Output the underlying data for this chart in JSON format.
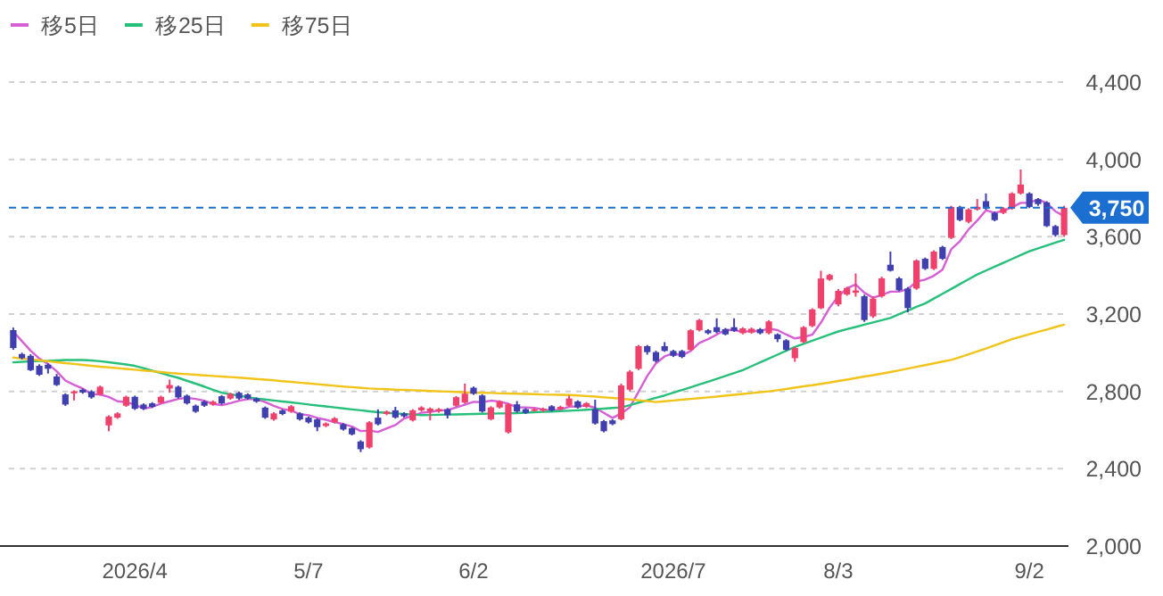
{
  "chart_data": {
    "type": "candlestick",
    "categories": [
      null,
      null,
      null,
      null,
      null,
      null,
      null,
      null,
      null,
      null,
      null,
      null,
      null,
      null,
      "2026/4",
      null,
      null,
      null,
      null,
      null,
      null,
      null,
      null,
      null,
      null,
      null,
      null,
      null,
      null,
      null,
      null,
      null,
      null,
      null,
      "5/7",
      null,
      null,
      null,
      null,
      null,
      null,
      null,
      null,
      null,
      null,
      null,
      null,
      null,
      null,
      null,
      null,
      null,
      null,
      "6/2",
      null,
      null,
      null,
      null,
      null,
      null,
      null,
      null,
      null,
      null,
      null,
      null,
      null,
      null,
      null,
      null,
      null,
      null,
      null,
      null,
      null,
      null,
      "2026/7",
      null,
      null,
      null,
      null,
      null,
      null,
      null,
      null,
      null,
      null,
      null,
      null,
      null,
      null,
      null,
      null,
      null,
      null,
      "8/3",
      null,
      null,
      null,
      null,
      null,
      null,
      null,
      null,
      null,
      null,
      null,
      null,
      null,
      null,
      null,
      null,
      null,
      null,
      null,
      null,
      null,
      "9/2",
      null,
      null,
      null,
      null
    ],
    "series": [
      {
        "colors": [
          "#3f3fb0",
          "#3f3fb0",
          "#3f3fb0",
          "#3f3fb0",
          "#3f3fb0",
          "#3f3fb0",
          "#3f3fb0",
          "#f0416c",
          "#3f3fb0",
          "#3f3fb0",
          "#f0416c",
          "#f0416c",
          "#f0416c",
          "#f0416c",
          "#3f3fb0",
          "#3f3fb0",
          "#3f3fb0",
          "#f0416c",
          "#f0416c",
          "#3f3fb0",
          "#3f3fb0",
          "#3f3fb0",
          "#3f3fb0",
          "#f0416c",
          "#3f3fb0",
          "#f0416c",
          "#3f3fb0",
          "#3f3fb0",
          "#3f3fb0",
          "#3f3fb0",
          "#f0416c",
          "#3f3fb0",
          "#f0416c",
          "#3f3fb0",
          "#3f3fb0",
          "#3f3fb0",
          "#f0416c",
          "#f0416c",
          "#3f3fb0",
          "#3f3fb0",
          "#3f3fb0",
          "#f0416c",
          "#3f3fb0",
          "#f0416c",
          "#3f3fb0",
          "#3f3fb0",
          "#f0416c",
          "#f0416c",
          "#f0416c",
          "#f0416c",
          "#3f3fb0",
          "#f0416c",
          "#f0416c",
          "#3f3fb0",
          "#3f3fb0",
          "#f0416c",
          "#f0416c",
          "#f0416c",
          "#3f3fb0",
          "#3f3fb0",
          "#f0416c",
          "#f0416c",
          "#3f3fb0",
          "#f0416c",
          "#f0416c",
          "#3f3fb0",
          "#f0416c",
          "#3f3fb0",
          "#3f3fb0",
          "#3f3fb0",
          "#f0416c",
          "#f0416c",
          "#f0416c",
          "#3f3fb0",
          "#3f3fb0",
          "#3f3fb0",
          "#3f3fb0",
          "#3f3fb0",
          "#f0416c",
          "#f0416c",
          "#3f3fb0",
          "#3f3fb0",
          "#3f3fb0",
          "#3f3fb0",
          "#f0416c",
          "#f0416c",
          "#3f3fb0",
          "#f0416c",
          "#3f3fb0",
          "#3f3fb0",
          "#f0416c",
          "#f0416c",
          "#f0416c",
          "#f0416c",
          "#f0416c",
          "#f0416c",
          "#f0416c",
          "#f0416c",
          "#3f3fb0",
          "#f0416c",
          "#f0416c",
          "#3f3fb0",
          "#3f3fb0",
          "#3f3fb0",
          "#f0416c",
          "#3f3fb0",
          "#f0416c",
          "#3f3fb0",
          "#f0416c",
          "#3f3fb0",
          "#f0416c",
          "#f0416c",
          "#3f3fb0",
          "#3f3fb0",
          "#f0416c",
          "#f0416c",
          "#f0416c",
          "#3f3fb0",
          "#3f3fb0",
          "#3f3fb0",
          "#3f3fb0",
          "#f0416c"
        ],
        "ohlc": [
          [
            3117,
            3130,
            3015,
            3024
          ],
          [
            2993,
            3000,
            2965,
            2972
          ],
          [
            2984,
            2992,
            2905,
            2910
          ],
          [
            2932,
            2940,
            2880,
            2886
          ],
          [
            2938,
            2945,
            2892,
            2917
          ],
          [
            2877,
            2890,
            2828,
            2833
          ],
          [
            2784,
            2790,
            2725,
            2732
          ],
          [
            2790,
            2805,
            2753,
            2800
          ],
          [
            2809,
            2815,
            2788,
            2794
          ],
          [
            2800,
            2806,
            2762,
            2769
          ],
          [
            2784,
            2830,
            2778,
            2824
          ],
          [
            2624,
            2676,
            2594,
            2670
          ],
          [
            2664,
            2692,
            2658,
            2686
          ],
          [
            2726,
            2778,
            2720,
            2772
          ],
          [
            2772,
            2778,
            2704,
            2710
          ],
          [
            2732,
            2738,
            2704,
            2710
          ],
          [
            2738,
            2744,
            2714,
            2720
          ],
          [
            2741,
            2778,
            2736,
            2772
          ],
          [
            2815,
            2861,
            2793,
            2833
          ],
          [
            2824,
            2830,
            2763,
            2769
          ],
          [
            2778,
            2784,
            2732,
            2738
          ],
          [
            2726,
            2732,
            2689,
            2695
          ],
          [
            2747,
            2753,
            2720,
            2726
          ],
          [
            2732,
            2753,
            2726,
            2747
          ],
          [
            2775,
            2781,
            2732,
            2738
          ],
          [
            2763,
            2793,
            2757,
            2787
          ],
          [
            2793,
            2799,
            2757,
            2763
          ],
          [
            2784,
            2790,
            2757,
            2763
          ],
          [
            2763,
            2769,
            2741,
            2747
          ],
          [
            2716,
            2722,
            2658,
            2664
          ],
          [
            2655,
            2692,
            2649,
            2686
          ],
          [
            2701,
            2707,
            2677,
            2683
          ],
          [
            2695,
            2729,
            2689,
            2723
          ],
          [
            2686,
            2692,
            2649,
            2655
          ],
          [
            2664,
            2670,
            2634,
            2640
          ],
          [
            2655,
            2661,
            2594,
            2615
          ],
          [
            2621,
            2640,
            2615,
            2634
          ],
          [
            2640,
            2667,
            2634,
            2661
          ],
          [
            2630,
            2636,
            2597,
            2603
          ],
          [
            2609,
            2615,
            2572,
            2578
          ],
          [
            2541,
            2547,
            2486,
            2501
          ],
          [
            2510,
            2646,
            2504,
            2640
          ],
          [
            2664,
            2707,
            2624,
            2630
          ],
          [
            2683,
            2701,
            2677,
            2695
          ],
          [
            2702,
            2720,
            2659,
            2665
          ],
          [
            2686,
            2692,
            2665,
            2671
          ],
          [
            2650,
            2708,
            2644,
            2702
          ],
          [
            2702,
            2723,
            2696,
            2717
          ],
          [
            2696,
            2717,
            2650,
            2711
          ],
          [
            2696,
            2714,
            2690,
            2708
          ],
          [
            2708,
            2714,
            2660,
            2677
          ],
          [
            2726,
            2776,
            2720,
            2770
          ],
          [
            2742,
            2840,
            2736,
            2788
          ],
          [
            2819,
            2825,
            2782,
            2788
          ],
          [
            2779,
            2785,
            2690,
            2696
          ],
          [
            2656,
            2723,
            2650,
            2717
          ],
          [
            2717,
            2754,
            2711,
            2748
          ],
          [
            2588,
            2739,
            2582,
            2733
          ],
          [
            2733,
            2750,
            2690,
            2696
          ],
          [
            2708,
            2714,
            2683,
            2689
          ],
          [
            2702,
            2714,
            2696,
            2708
          ],
          [
            2700,
            2716,
            2694,
            2710
          ],
          [
            2723,
            2729,
            2696,
            2702
          ],
          [
            2708,
            2726,
            2702,
            2720
          ],
          [
            2726,
            2778,
            2720,
            2763
          ],
          [
            2748,
            2754,
            2711,
            2717
          ],
          [
            2720,
            2745,
            2714,
            2739
          ],
          [
            2708,
            2757,
            2628,
            2634
          ],
          [
            2646,
            2652,
            2588,
            2594
          ],
          [
            2650,
            2656,
            2625,
            2631
          ],
          [
            2656,
            2840,
            2650,
            2831
          ],
          [
            2809,
            2910,
            2800,
            2902
          ],
          [
            2917,
            3040,
            2910,
            3034
          ],
          [
            3034,
            3040,
            2990,
            3003
          ],
          [
            3003,
            3010,
            2950,
            2957
          ],
          [
            3034,
            3055,
            3005,
            3009
          ],
          [
            3009,
            3015,
            2978,
            2984
          ],
          [
            3009,
            3015,
            2972,
            2978
          ],
          [
            3015,
            3122,
            3010,
            3116
          ],
          [
            3116,
            3175,
            3110,
            3169
          ],
          [
            3116,
            3122,
            3095,
            3101
          ],
          [
            3132,
            3178,
            3100,
            3107
          ],
          [
            3122,
            3128,
            3090,
            3095
          ],
          [
            3132,
            3178,
            3108,
            3113
          ],
          [
            3101,
            3132,
            3095,
            3126
          ],
          [
            3104,
            3130,
            3098,
            3124
          ],
          [
            3122,
            3128,
            3095,
            3101
          ],
          [
            3101,
            3168,
            3095,
            3162
          ],
          [
            3095,
            3100,
            3055,
            3070
          ],
          [
            3064,
            3070,
            3010,
            3015
          ],
          [
            2972,
            3030,
            2953,
            3024
          ],
          [
            3055,
            3138,
            3050,
            3132
          ],
          [
            3138,
            3230,
            3132,
            3224
          ],
          [
            3230,
            3424,
            3225,
            3384
          ],
          [
            3378,
            3408,
            3372,
            3402
          ],
          [
            3250,
            3330,
            3240,
            3320
          ],
          [
            3301,
            3341,
            3295,
            3335
          ],
          [
            3310,
            3410,
            3290,
            3322
          ],
          [
            3292,
            3300,
            3160,
            3169
          ],
          [
            3188,
            3292,
            3180,
            3280
          ],
          [
            3292,
            3393,
            3285,
            3385
          ],
          [
            3455,
            3523,
            3420,
            3424
          ],
          [
            3385,
            3392,
            3318,
            3323
          ],
          [
            3332,
            3340,
            3209,
            3231
          ],
          [
            3332,
            3483,
            3325,
            3477
          ],
          [
            3486,
            3492,
            3428,
            3434
          ],
          [
            3434,
            3530,
            3428,
            3523
          ],
          [
            3547,
            3553,
            3480,
            3486
          ],
          [
            3594,
            3760,
            3588,
            3754
          ],
          [
            3754,
            3760,
            3680,
            3686
          ],
          [
            3677,
            3747,
            3670,
            3741
          ],
          [
            3741,
            3795,
            3735,
            3755
          ],
          [
            3784,
            3824,
            3740,
            3747
          ],
          [
            3723,
            3730,
            3680,
            3686
          ],
          [
            3723,
            3753,
            3717,
            3747
          ],
          [
            3747,
            3830,
            3740,
            3824
          ],
          [
            3824,
            3948,
            3818,
            3870
          ],
          [
            3824,
            3830,
            3748,
            3754
          ],
          [
            3794,
            3800,
            3760,
            3769
          ],
          [
            3778,
            3784,
            3650,
            3655
          ],
          [
            3655,
            3661,
            3600,
            3609
          ],
          [
            3609,
            3760,
            3600,
            3750
          ]
        ]
      },
      {
        "type": "line",
        "name": "移5日",
        "color": "#d65fd6",
        "values": [
          3110,
          3060,
          3010,
          2970,
          2942,
          2904,
          2856,
          2834,
          2815,
          2786,
          2784,
          2771,
          2749,
          2744,
          2732,
          2710,
          2720,
          2737,
          2749,
          2761,
          2766,
          2761,
          2752,
          2735,
          2729,
          2739,
          2752,
          2760,
          2760,
          2745,
          2725,
          2709,
          2701,
          2682,
          2677,
          2663,
          2653,
          2641,
          2631,
          2618,
          2595,
          2597,
          2590,
          2609,
          2626,
          2660,
          2673,
          2690,
          2693,
          2702,
          2703,
          2717,
          2731,
          2746,
          2744,
          2752,
          2747,
          2736,
          2718,
          2717,
          2715,
          2707,
          2701,
          2706,
          2721,
          2722,
          2728,
          2715,
          2689,
          2663,
          2686,
          2718,
          2798,
          2880,
          2945,
          2981,
          2997,
          2986,
          3009,
          3051,
          3070,
          3094,
          3118,
          3117,
          3108,
          3113,
          3112,
          3125,
          3117,
          3094,
          3074,
          3081,
          3093,
          3156,
          3233,
          3292,
          3333,
          3353,
          3310,
          3285,
          3298,
          3316,
          3316,
          3329,
          3368,
          3378,
          3398,
          3430,
          3535,
          3577,
          3638,
          3684,
          3737,
          3723,
          3735,
          3752,
          3775,
          3776,
          3793,
          3774,
          3731,
          3707
        ]
      },
      {
        "type": "line",
        "name": "移25日",
        "color": "#27c07a",
        "values": [
          2950,
          2953,
          2955,
          2957,
          2958,
          2960,
          2962,
          2963,
          2962,
          2960,
          2956,
          2951,
          2945,
          2939,
          2932,
          2920,
          2907,
          2895,
          2882,
          2870,
          2855,
          2840,
          2825,
          2808,
          2793,
          2785,
          2778,
          2770,
          2763,
          2758,
          2753,
          2748,
          2743,
          2738,
          2732,
          2727,
          2722,
          2717,
          2712,
          2707,
          2702,
          2697,
          2692,
          2689,
          2686,
          2683,
          2680,
          2677,
          2678,
          2679,
          2680,
          2681,
          2682,
          2683,
          2684,
          2685,
          2686,
          2686,
          2688,
          2690,
          2692,
          2694,
          2696,
          2698,
          2700,
          2702,
          2705,
          2708,
          2711,
          2714,
          2717,
          2729,
          2742,
          2754,
          2767,
          2779,
          2793,
          2807,
          2821,
          2836,
          2850,
          2865,
          2880,
          2895,
          2910,
          2930,
          2950,
          2970,
          2990,
          3010,
          3030,
          3046,
          3062,
          3078,
          3094,
          3110,
          3122,
          3133,
          3145,
          3157,
          3168,
          3180,
          3199,
          3218,
          3237,
          3255,
          3280,
          3305,
          3330,
          3355,
          3380,
          3405,
          3425,
          3445,
          3465,
          3485,
          3505,
          3525,
          3540,
          3555,
          3570,
          3584
        ]
      },
      {
        "type": "line",
        "name": "移75日",
        "color": "#f2c318",
        "values": [
          2975,
          2970,
          2965,
          2961,
          2956,
          2951,
          2946,
          2942,
          2937,
          2932,
          2928,
          2924,
          2920,
          2916,
          2912,
          2908,
          2904,
          2900,
          2896,
          2892,
          2889,
          2886,
          2883,
          2880,
          2877,
          2874,
          2871,
          2868,
          2864,
          2861,
          2857,
          2853,
          2849,
          2845,
          2841,
          2837,
          2833,
          2829,
          2825,
          2822,
          2818,
          2815,
          2813,
          2811,
          2809,
          2808,
          2806,
          2804,
          2802,
          2800,
          2799,
          2797,
          2795,
          2794,
          2793,
          2792,
          2790,
          2789,
          2788,
          2787,
          2786,
          2784,
          2783,
          2782,
          2781,
          2779,
          2776,
          2773,
          2769,
          2766,
          2762,
          2758,
          2754,
          2750,
          2745,
          2749,
          2753,
          2757,
          2761,
          2765,
          2769,
          2773,
          2778,
          2782,
          2787,
          2791,
          2796,
          2800,
          2806,
          2812,
          2819,
          2826,
          2832,
          2839,
          2846,
          2854,
          2861,
          2869,
          2877,
          2884,
          2892,
          2900,
          2909,
          2918,
          2927,
          2936,
          2945,
          2954,
          2963,
          2977,
          2992,
          3007,
          3022,
          3038,
          3054,
          3070,
          3083,
          3096,
          3108,
          3120,
          3133,
          3145
        ]
      }
    ],
    "ylim": [
      2000,
      4400
    ],
    "yticks": [
      {
        "value": 2000,
        "label": "2,000"
      },
      {
        "value": 2400,
        "label": "2,400"
      },
      {
        "value": 2800,
        "label": "2,800"
      },
      {
        "value": 3200,
        "label": "3,200"
      },
      {
        "value": 3600,
        "label": "3,600"
      },
      {
        "value": 4000,
        "label": "4,000"
      },
      {
        "value": 4400,
        "label": "4,400"
      }
    ],
    "grid": "y",
    "legend": "top left",
    "ref_lines": [
      {
        "axis": "y",
        "value": 3750,
        "label": "3,750",
        "color": "#1a6fd0",
        "line_style": "dashed"
      }
    ]
  }
}
